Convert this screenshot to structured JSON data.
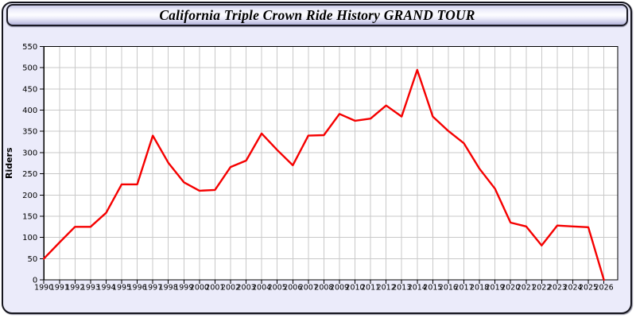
{
  "titlebar": {
    "title": "California Triple Crown Ride History GRAND TOUR"
  },
  "colors": {
    "page_bg": "#ffffff",
    "panel_bg": "#ebebfa",
    "panel_border": "#15151d",
    "plot_bg": "#ffffff",
    "grid": "#c9c9c9",
    "axis": "#000000",
    "text": "#000000",
    "line": "#f50000"
  },
  "chart_data": {
    "type": "line",
    "title": "California Triple Crown Ride History GRAND TOUR",
    "xlabel": "",
    "ylabel": "Riders",
    "categories": [
      "1990",
      "1991",
      "1992",
      "1993",
      "1994",
      "1995",
      "1996",
      "1997",
      "1998",
      "1999",
      "2000",
      "2001",
      "2002",
      "2003",
      "2004",
      "2005",
      "2006",
      "2007",
      "2008",
      "2009",
      "2010",
      "2011",
      "2012",
      "2013",
      "2014",
      "2015",
      "2016",
      "2017",
      "2018",
      "2019",
      "2020",
      "2021",
      "2022",
      "2023",
      "2024",
      "2025",
      "2026"
    ],
    "series": [
      {
        "name": "Riders",
        "color": "#f50000",
        "values": [
          50,
          88,
          125,
          125,
          158,
          225,
          225,
          340,
          276,
          230,
          210,
          212,
          266,
          281,
          345,
          306,
          270,
          340,
          341,
          391,
          375,
          380,
          411,
          385,
          495,
          385,
          351,
          322,
          262,
          215,
          135,
          126,
          81,
          128,
          126,
          124,
          0
        ]
      }
    ],
    "ylim": [
      0,
      550
    ],
    "ytick_step": 50,
    "grid": true,
    "legend": false
  }
}
